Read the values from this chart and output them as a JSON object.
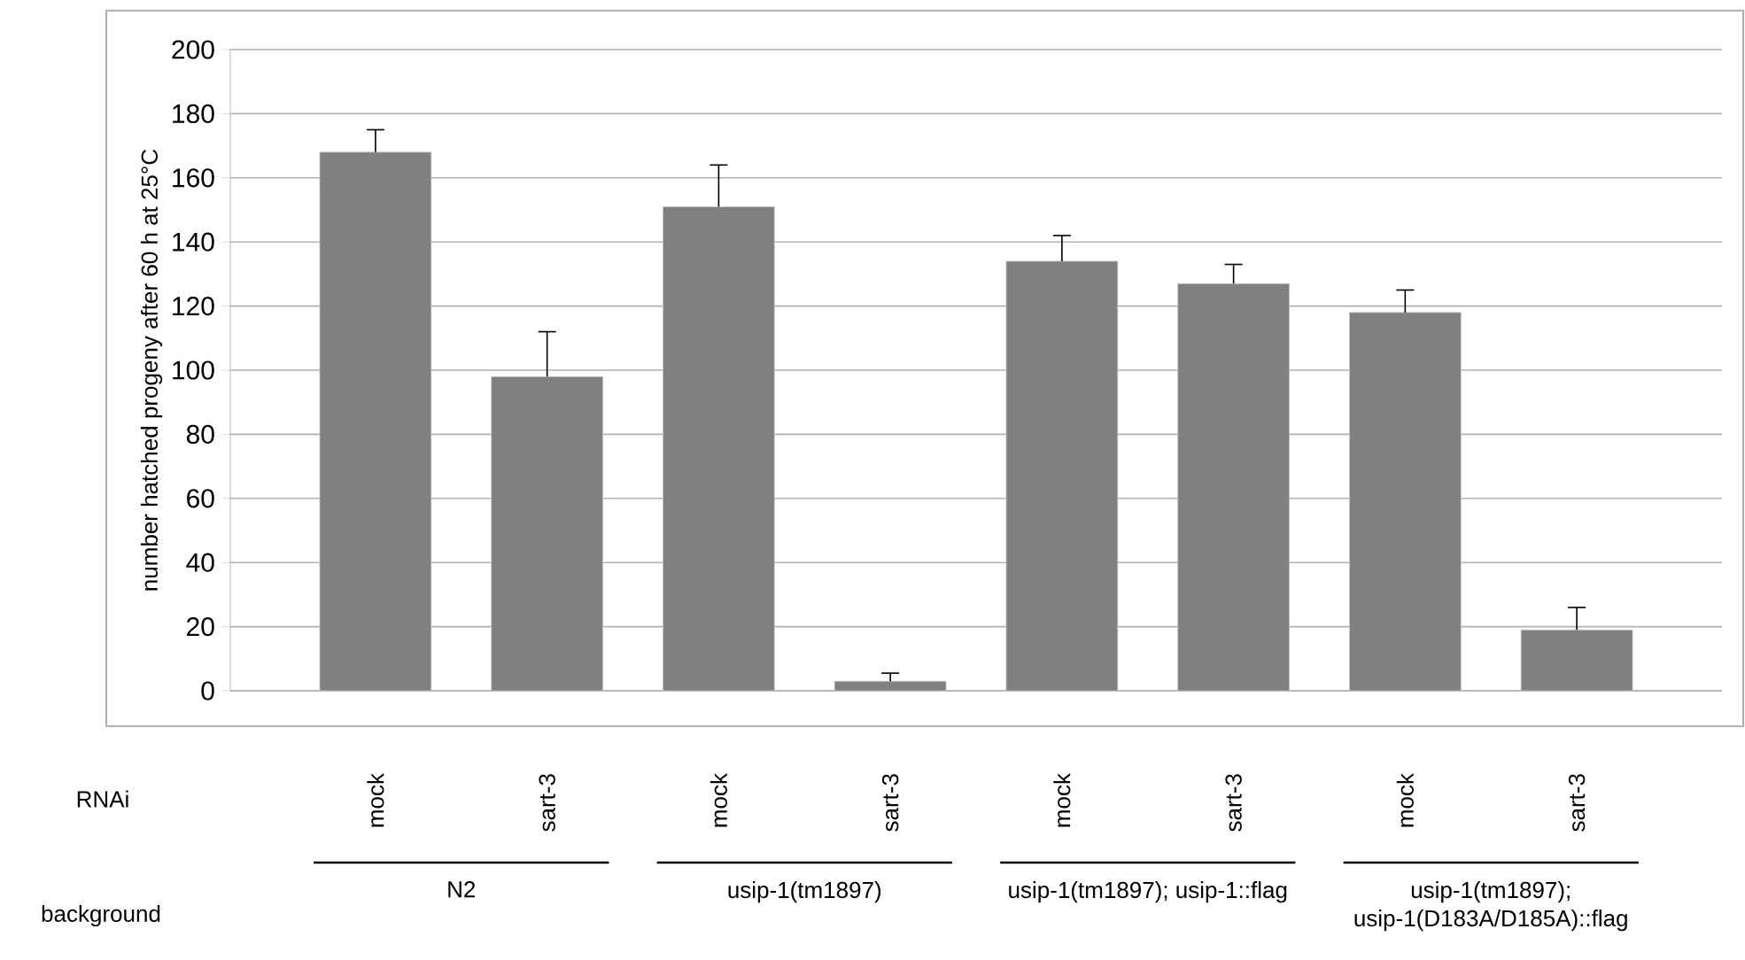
{
  "chart_data": {
    "type": "bar",
    "ylabel": "number hatched progeny after 60 h at 25°C",
    "categories": [
      "mock",
      "sart-3",
      "mock",
      "sart-3",
      "mock",
      "sart-3",
      "mock",
      "sart-3"
    ],
    "values": [
      168,
      98,
      151,
      3,
      134,
      127,
      118,
      19
    ],
    "errors": [
      7,
      14,
      13,
      2.5,
      8,
      6,
      7,
      7
    ],
    "color": "#808080",
    "ylim": [
      0,
      200
    ],
    "yticks": [
      0,
      20,
      40,
      60,
      80,
      100,
      120,
      140,
      160,
      180,
      200
    ],
    "grid": "y",
    "annotations": [
      "RNAi",
      "background",
      "N2",
      "usip-1(tm1897)",
      "usip-1(tm1897); usip-1::flag",
      "usip-1(tm1897); usip-1(D183A/D185A)::flag"
    ]
  }
}
